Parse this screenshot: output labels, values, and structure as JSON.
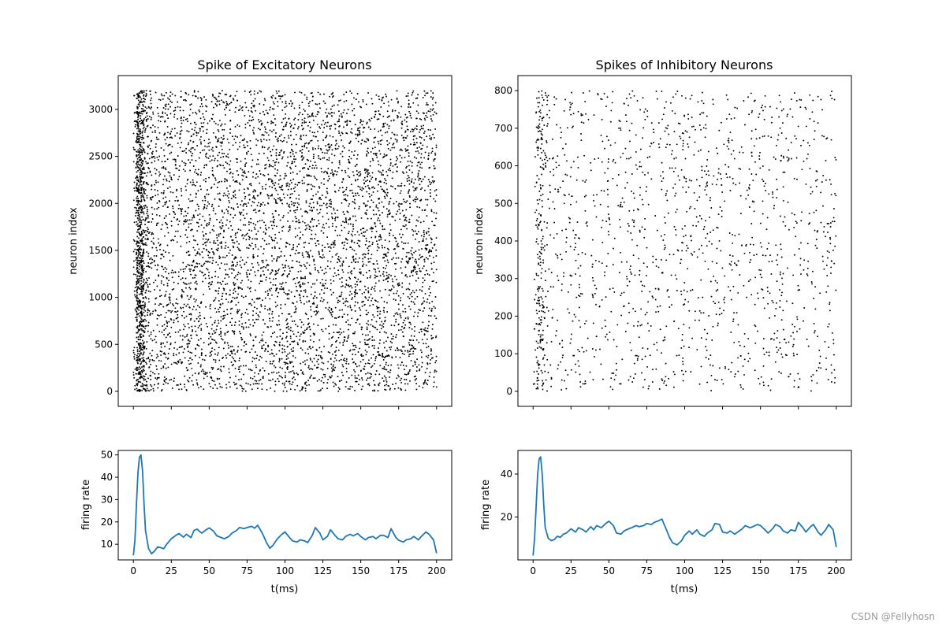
{
  "watermark": "CSDN @Fellyhosn",
  "colors": {
    "spike": "#000000",
    "rate_line": "#1f77b4",
    "axes": "#000000",
    "background": "#ffffff"
  },
  "chart_data": [
    {
      "id": "raster-excitatory",
      "type": "scatter",
      "title": "Spike of Excitatory Neurons",
      "xlabel": "",
      "ylabel": "neuron index",
      "xlim": [
        -10,
        210
      ],
      "ylim": [
        -160,
        3360
      ],
      "xticks": [
        0,
        25,
        50,
        75,
        100,
        125,
        150,
        175,
        200
      ],
      "xticklabels_visible": false,
      "yticks": [
        0,
        500,
        1000,
        1500,
        2000,
        2500,
        3000
      ],
      "n_neurons": 3200,
      "t_range": [
        0,
        200
      ],
      "initial_burst_window": [
        2,
        7
      ],
      "random_spike_count": 5600,
      "burst_spike_count": 700,
      "marker": "point"
    },
    {
      "id": "raster-inhibitory",
      "type": "scatter",
      "title": "Spikes of Inhibitory Neurons",
      "xlabel": "",
      "ylabel": "neuron index",
      "xlim": [
        -10,
        210
      ],
      "ylim": [
        -40,
        840
      ],
      "xticks": [
        0,
        25,
        50,
        75,
        100,
        125,
        150,
        175,
        200
      ],
      "xticklabels_visible": false,
      "yticks": [
        0,
        100,
        200,
        300,
        400,
        500,
        600,
        700,
        800
      ],
      "n_neurons": 800,
      "t_range": [
        0,
        200
      ],
      "initial_burst_window": [
        2,
        7
      ],
      "random_spike_count": 1500,
      "burst_spike_count": 170,
      "marker": "point"
    },
    {
      "id": "rate-excitatory",
      "type": "line",
      "title": "",
      "xlabel": "t(ms)",
      "ylabel": "firing rate",
      "xlim": [
        -10,
        210
      ],
      "ylim": [
        3,
        52
      ],
      "xticks": [
        0,
        25,
        50,
        75,
        100,
        125,
        150,
        175,
        200
      ],
      "yticks": [
        10,
        20,
        30,
        40,
        50
      ],
      "x": [
        0,
        1,
        2,
        3,
        4,
        5,
        6,
        7,
        8,
        10,
        12,
        14,
        16,
        18,
        20,
        22,
        25,
        28,
        30,
        33,
        35,
        38,
        40,
        42,
        45,
        48,
        50,
        53,
        55,
        58,
        60,
        63,
        65,
        68,
        70,
        73,
        75,
        78,
        80,
        82,
        85,
        88,
        90,
        92,
        95,
        98,
        100,
        103,
        105,
        108,
        110,
        113,
        115,
        118,
        120,
        123,
        125,
        128,
        130,
        133,
        135,
        138,
        140,
        143,
        145,
        148,
        150,
        153,
        155,
        158,
        160,
        163,
        165,
        168,
        170,
        173,
        175,
        178,
        180,
        183,
        185,
        188,
        190,
        193,
        195,
        198,
        200
      ],
      "y": [
        5,
        12,
        28,
        42,
        49,
        50,
        43,
        28,
        16,
        8,
        5.8,
        7,
        8.8,
        8.5,
        8,
        10,
        12.5,
        14,
        14.8,
        13.2,
        14.5,
        13,
        16.2,
        16.8,
        15,
        16.5,
        17.3,
        15.8,
        13.8,
        13,
        12.5,
        13.5,
        15,
        16.2,
        17.5,
        17,
        17.5,
        18,
        17.2,
        18.5,
        15,
        10.5,
        8.2,
        9.5,
        12.5,
        14.5,
        15.5,
        13,
        11.5,
        11,
        12,
        11.5,
        10.8,
        14,
        17.5,
        15,
        12,
        13.5,
        16.5,
        14,
        12.5,
        12,
        13.5,
        14.5,
        13.8,
        14.8,
        13.5,
        12,
        13,
        13.5,
        12.5,
        14,
        14,
        13,
        17,
        13.2,
        11.8,
        11,
        12,
        12.5,
        13.5,
        12,
        13.5,
        15.5,
        14.5,
        12,
        6
      ]
    },
    {
      "id": "rate-inhibitory",
      "type": "line",
      "title": "",
      "xlabel": "t(ms)",
      "ylabel": "firing rate",
      "xlim": [
        -10,
        210
      ],
      "ylim": [
        0,
        51
      ],
      "xticks": [
        0,
        25,
        50,
        75,
        100,
        125,
        150,
        175,
        200
      ],
      "yticks": [
        20,
        40
      ],
      "x": [
        0,
        1,
        2,
        3,
        4,
        5,
        6,
        7,
        8,
        10,
        12,
        14,
        16,
        18,
        20,
        22,
        25,
        28,
        30,
        33,
        35,
        38,
        40,
        42,
        45,
        48,
        50,
        53,
        55,
        58,
        60,
        63,
        65,
        68,
        70,
        73,
        75,
        78,
        80,
        82,
        85,
        88,
        90,
        92,
        95,
        98,
        100,
        103,
        105,
        108,
        110,
        113,
        115,
        118,
        120,
        123,
        125,
        128,
        130,
        133,
        135,
        138,
        140,
        143,
        145,
        148,
        150,
        153,
        155,
        158,
        160,
        163,
        165,
        168,
        170,
        173,
        175,
        178,
        180,
        183,
        185,
        188,
        190,
        193,
        195,
        198,
        200
      ],
      "y": [
        2,
        10,
        25,
        40,
        47,
        48,
        40,
        26,
        15,
        10,
        9,
        9.5,
        11,
        10.5,
        12,
        12.5,
        14.5,
        13,
        15,
        14,
        13,
        15.5,
        14,
        16,
        15,
        17,
        18,
        16,
        12.5,
        12,
        13.5,
        14.5,
        15,
        16,
        15.5,
        16,
        17,
        16.5,
        17.5,
        18,
        19,
        14,
        10.5,
        8,
        7,
        9,
        11.5,
        13.5,
        12,
        14,
        12,
        11,
        12.5,
        14,
        17,
        16.5,
        13,
        12.5,
        13.5,
        12,
        13,
        14.5,
        16,
        15,
        15.5,
        16.5,
        16,
        14,
        12.5,
        14.5,
        16.5,
        15.5,
        13.5,
        12.5,
        14,
        13.5,
        17.5,
        15,
        13,
        15.5,
        16.5,
        13,
        11.5,
        14,
        16.5,
        14,
        6
      ]
    }
  ]
}
